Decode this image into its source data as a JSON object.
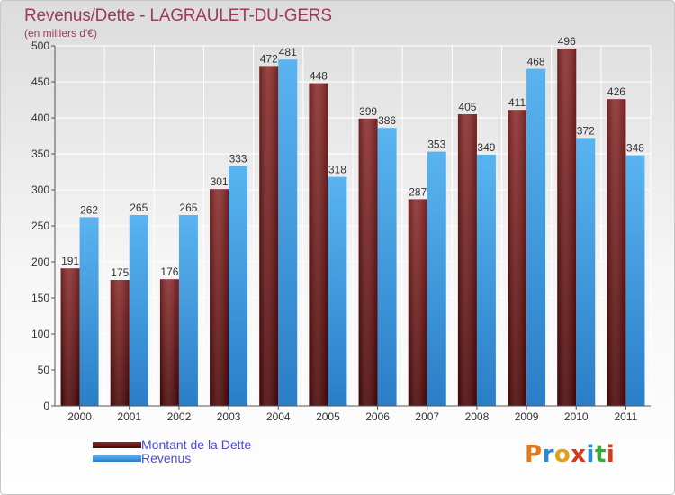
{
  "header": {
    "title": "Revenus/Dette - LAGRAULET-DU-GERS",
    "subtitle": "(en milliers d'€)"
  },
  "legend": {
    "items": [
      {
        "label": "Montant de la Dette",
        "color": "#7a1a1a"
      },
      {
        "label": "Revenus",
        "color": "#4aa3e8"
      }
    ]
  },
  "logo": {
    "text": "Proxiti",
    "letters": [
      {
        "ch": "P",
        "color": "#e07a1a"
      },
      {
        "ch": "r",
        "color": "#2a8ad8"
      },
      {
        "ch": "o",
        "color": "#e0a01a"
      },
      {
        "ch": "x",
        "color": "#d8381a"
      },
      {
        "ch": "i",
        "color": "#2a8ad8"
      },
      {
        "ch": "t",
        "color": "#3aa83a"
      },
      {
        "ch": "i",
        "color": "#d8381a"
      }
    ]
  },
  "chart_data": {
    "type": "bar",
    "title": "Revenus/Dette - LAGRAULET-DU-GERS",
    "subtitle": "(en milliers d'€)",
    "categories": [
      "2000",
      "2001",
      "2002",
      "2003",
      "2004",
      "2005",
      "2006",
      "2007",
      "2008",
      "2009",
      "2010",
      "2011"
    ],
    "series": [
      {
        "name": "Montant de la Dette",
        "color": "#7a1a1a",
        "values": [
          191,
          175,
          176,
          301,
          472,
          448,
          399,
          287,
          405,
          411,
          496,
          426
        ]
      },
      {
        "name": "Revenus",
        "color": "#4aa3e8",
        "values": [
          262,
          265,
          265,
          333,
          481,
          318,
          386,
          353,
          349,
          468,
          372,
          348
        ]
      }
    ],
    "ylim": [
      0,
      500
    ],
    "yticks": [
      0,
      50,
      100,
      150,
      200,
      250,
      300,
      350,
      400,
      450,
      500
    ],
    "grid": true,
    "legend_position": "bottom-left"
  }
}
